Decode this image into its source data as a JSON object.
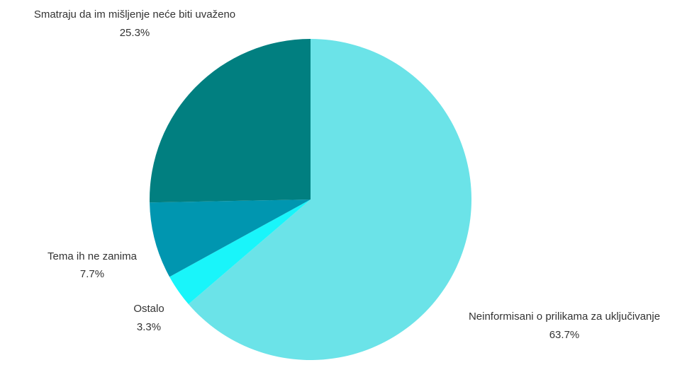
{
  "chart_data": {
    "type": "pie",
    "title": "",
    "slices": [
      {
        "name": "Neinformisani o prilikama za uključivanje",
        "value": 63.7,
        "value_label": "63.7%",
        "color": "#6be3e8"
      },
      {
        "name": "Ostalo",
        "value": 3.3,
        "value_label": "3.3%",
        "color": "#19f5fa"
      },
      {
        "name": "Tema ih ne zanima",
        "value": 7.7,
        "value_label": "7.7%",
        "color": "#0096b0"
      },
      {
        "name": "Smatraju da im mišljenje neće biti uvaženo",
        "value": 25.3,
        "value_label": "25.3%",
        "color": "#017f80"
      }
    ],
    "start_angle": "12 o'clock",
    "direction": "clockwise",
    "legend": "none",
    "labels": "outside"
  }
}
